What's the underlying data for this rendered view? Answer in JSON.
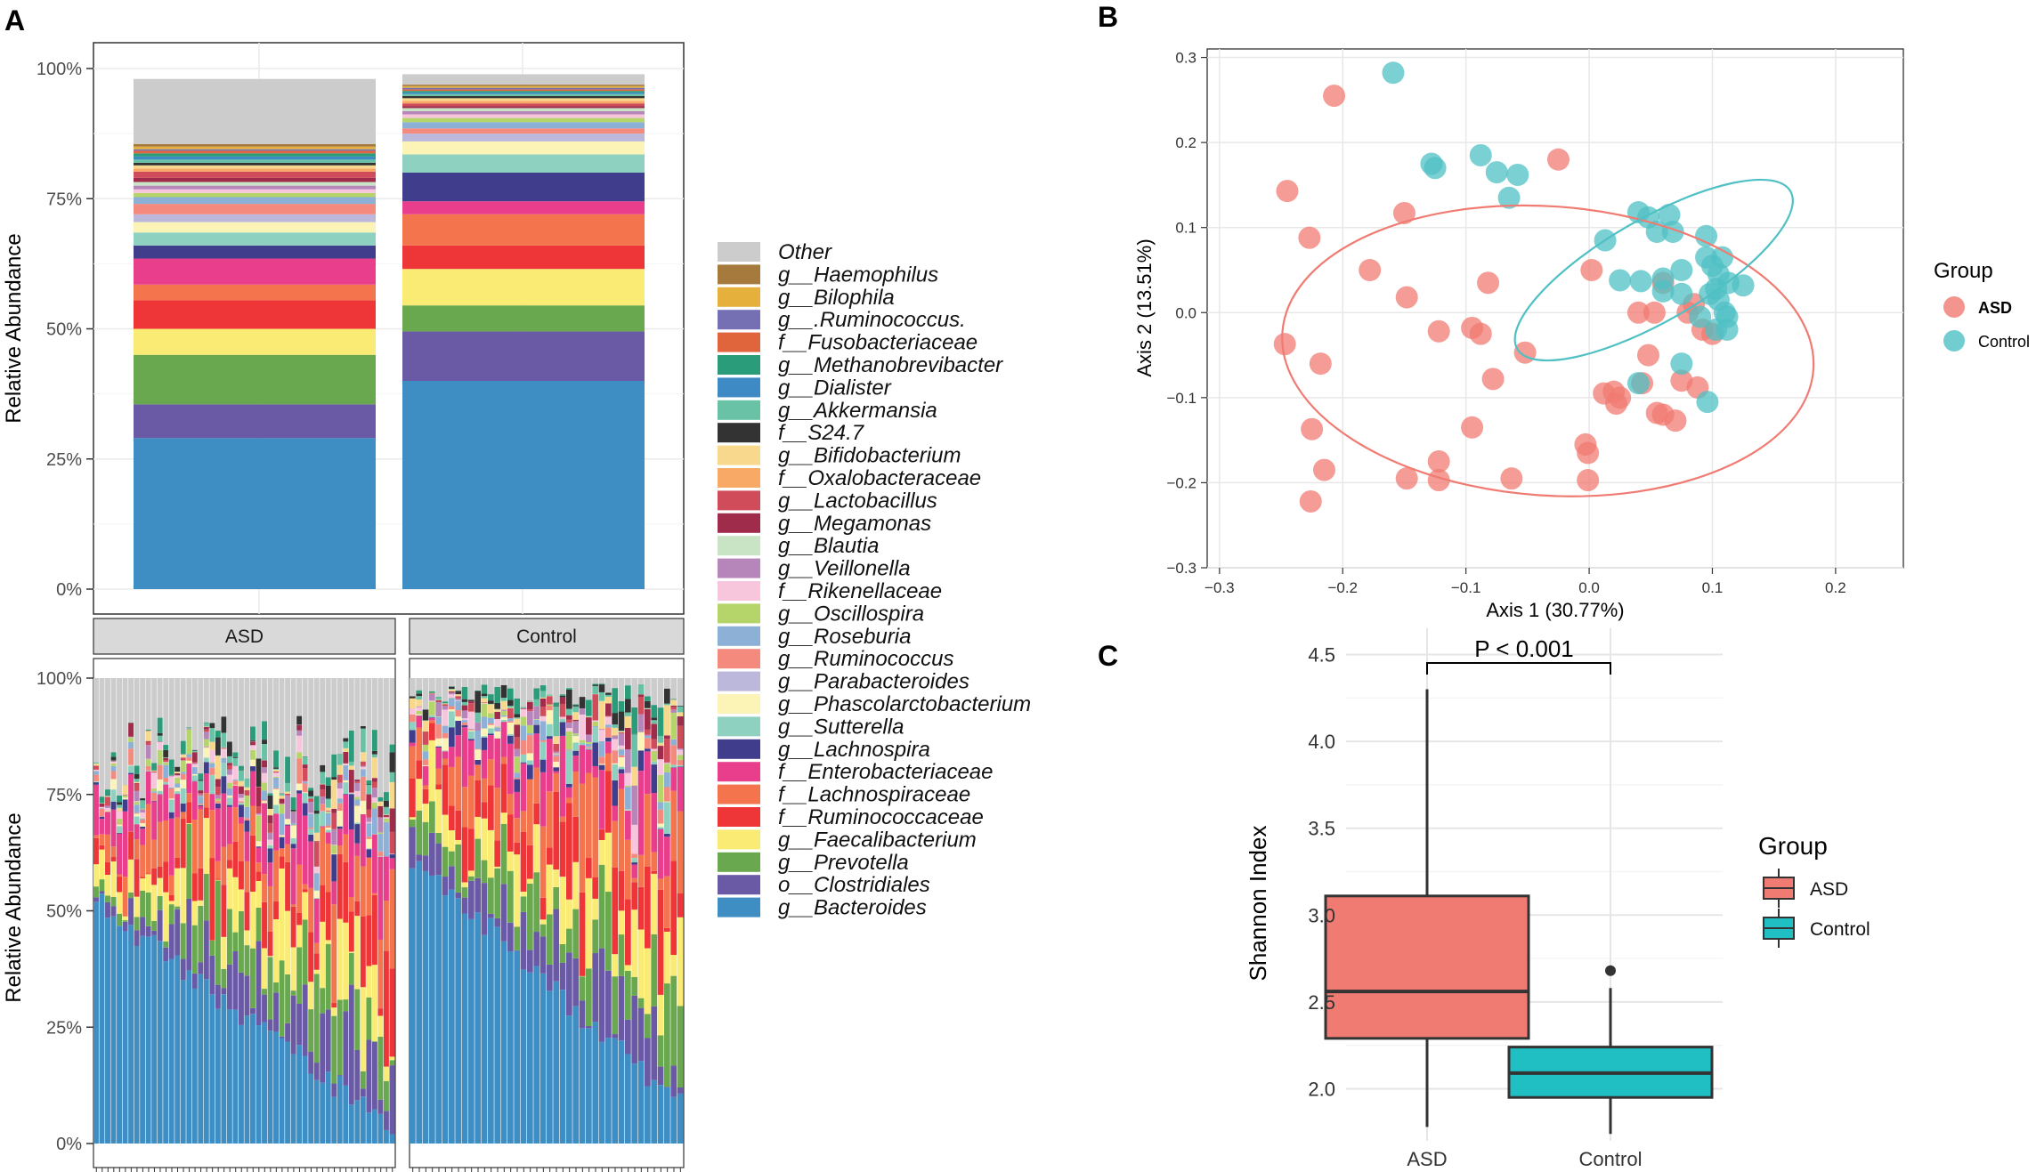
{
  "panels": {
    "a": "A",
    "b": "B",
    "c": "C"
  },
  "chart_data": [
    {
      "type": "bar",
      "stacked": true,
      "title": "",
      "ylabel": "Relative Abundance",
      "yticks": [
        "0%",
        "25%",
        "50%",
        "75%",
        "100%"
      ],
      "ylim": [
        0,
        100
      ],
      "categories": [
        "ASD",
        "Control"
      ],
      "legend_order": [
        "Other",
        "g__Haemophilus",
        "g__Bilophila",
        "g__.Ruminococcus.",
        "f__Fusobacteriaceae",
        "g__Methanobrevibacter",
        "g__Dialister",
        "g__Akkermansia",
        "f__S24.7",
        "g__Bifidobacterium",
        "f__Oxalobacteraceae",
        "g__Lactobacillus",
        "g__Megamonas",
        "g__Blautia",
        "g__Veillonella",
        "f__Rikenellaceae",
        "g__Oscillospira",
        "g__Roseburia",
        "g__Ruminococcus",
        "g__Parabacteroides",
        "g__Phascolarctobacterium",
        "g__Sutterella",
        "g__Lachnospira",
        "f__Enterobacteriaceae",
        "f__Lachnospiraceae",
        "f__Ruminococcaceae",
        "g__Faecalibacterium",
        "g__Prevotella",
        "o__Clostridiales",
        "g__Bacteroides"
      ],
      "colors": {
        "Other": "#cccccc",
        "g__Haemophilus": "#a6793c",
        "g__Bilophila": "#e6b03c",
        "g__.Ruminococcus.": "#7570b3",
        "f__Fusobacteriaceae": "#e0643c",
        "g__Methanobrevibacter": "#2a9c7a",
        "g__Dialister": "#3d8ac4",
        "g__Akkermansia": "#69c2a5",
        "f__S24.7": "#333333",
        "g__Bifidobacterium": "#f7d88c",
        "f__Oxalobacteraceae": "#f8a965",
        "g__Lactobacillus": "#d04c5a",
        "g__Megamonas": "#a02c4c",
        "g__Blautia": "#c9e4c5",
        "g__Veillonella": "#b686bb",
        "f__Rikenellaceae": "#f7c6dc",
        "g__Oscillospira": "#b5d56a",
        "g__Roseburia": "#8cb0d6",
        "g__Ruminococcus": "#f48a7e",
        "g__Parabacteroides": "#bcb8dc",
        "g__Phascolarctobacterium": "#fcf4b6",
        "g__Sutterella": "#8ed1c1",
        "g__Lachnospira": "#3f3d8c",
        "f__Enterobacteriaceae": "#e83e8c",
        "f__Lachnospiraceae": "#f4744e",
        "f__Ruminococcaceae": "#ee3537",
        "g__Faecalibacterium": "#f9eb74",
        "g__Prevotella": "#6aa84f",
        "o__Clostridiales": "#6a5aa6",
        "g__Bacteroides": "#3e8ec4"
      },
      "series": [
        {
          "name": "g__Bacteroides",
          "values": [
            29,
            40
          ]
        },
        {
          "name": "o__Clostridiales",
          "values": [
            6.5,
            9.5
          ]
        },
        {
          "name": "g__Prevotella",
          "values": [
            9.5,
            5
          ]
        },
        {
          "name": "g__Faecalibacterium",
          "values": [
            5,
            7
          ]
        },
        {
          "name": "f__Ruminococcaceae",
          "values": [
            5.5,
            4.5
          ]
        },
        {
          "name": "f__Lachnospiraceae",
          "values": [
            3,
            6
          ]
        },
        {
          "name": "f__Enterobacteriaceae",
          "values": [
            5,
            2.5
          ]
        },
        {
          "name": "g__Lachnospira",
          "values": [
            2.5,
            5.5
          ]
        },
        {
          "name": "g__Sutterella",
          "values": [
            2.5,
            3.5
          ]
        },
        {
          "name": "g__Phascolarctobacterium",
          "values": [
            2,
            2.5
          ]
        },
        {
          "name": "g__Parabacteroides",
          "values": [
            1.5,
            1.5
          ]
        },
        {
          "name": "g__Ruminococcus",
          "values": [
            2,
            1
          ]
        },
        {
          "name": "g__Roseburia",
          "values": [
            1.3,
            1.2
          ]
        },
        {
          "name": "g__Oscillospira",
          "values": [
            0.8,
            0.8
          ]
        },
        {
          "name": "f__Rikenellaceae",
          "values": [
            0.7,
            0.7
          ]
        },
        {
          "name": "g__Veillonella",
          "values": [
            0.7,
            0.6
          ]
        },
        {
          "name": "g__Blautia",
          "values": [
            0.7,
            0.6
          ]
        },
        {
          "name": "g__Megamonas",
          "values": [
            0.8,
            0.4
          ]
        },
        {
          "name": "g__Lactobacillus",
          "values": [
            1.2,
            0.5
          ]
        },
        {
          "name": "f__Oxalobacteraceae",
          "values": [
            0.6,
            0.5
          ]
        },
        {
          "name": "g__Bifidobacterium",
          "values": [
            0.6,
            0.5
          ]
        },
        {
          "name": "f__S24.7",
          "values": [
            0.5,
            0.4
          ]
        },
        {
          "name": "g__Akkermansia",
          "values": [
            0.6,
            0.4
          ]
        },
        {
          "name": "g__Dialister",
          "values": [
            0.6,
            0.3
          ]
        },
        {
          "name": "g__Methanobrevibacter",
          "values": [
            0.6,
            0.3
          ]
        },
        {
          "name": "f__Fusobacteriaceae",
          "values": [
            0.5,
            0.3
          ]
        },
        {
          "name": "g__.Ruminococcus.",
          "values": [
            0.3,
            0.3
          ]
        },
        {
          "name": "g__Bilophila",
          "values": [
            0.5,
            0.3
          ]
        },
        {
          "name": "g__Haemophilus",
          "values": [
            0.5,
            0.3
          ]
        },
        {
          "name": "Other",
          "values": [
            12.5,
            2
          ]
        }
      ]
    },
    {
      "type": "bar",
      "stacked": true,
      "ylabel": "Relative Abundance",
      "yticks": [
        "0%",
        "25%",
        "50%",
        "75%",
        "100%"
      ],
      "ylim": [
        0,
        100
      ],
      "facets": [
        "ASD",
        "Control"
      ],
      "samples_per_facet": [
        52,
        42
      ],
      "groups": [
        {
          "facet": "ASD",
          "count": 52,
          "bacteroides_range": [
            52,
            3
          ],
          "top_fill": "Other"
        },
        {
          "facet": "Control",
          "count": 42,
          "bacteroides_range": [
            62,
            8
          ],
          "top_fill": "Other"
        }
      ]
    },
    {
      "type": "scatter",
      "xlabel": "Axis 1 (30.77%)",
      "ylabel": "Axis 2 (13.51%)",
      "xlim": [
        -0.31,
        0.255
      ],
      "ylim": [
        -0.3,
        0.31
      ],
      "xticks": [
        -0.3,
        -0.2,
        -0.1,
        0.0,
        0.1,
        0.2
      ],
      "yticks": [
        -0.3,
        -0.2,
        -0.1,
        0.0,
        0.1,
        0.2,
        0.3
      ],
      "xtick_labels": [
        "−0.3",
        "−0.2",
        "−0.1",
        "0.0",
        "0.1",
        "0.2"
      ],
      "ytick_labels": [
        "−0.3",
        "−0.2",
        "−0.1",
        "0.0",
        "0.1",
        "0.2",
        "0.3"
      ],
      "legend_title": "Group",
      "series": [
        {
          "name": "ASD",
          "color": "#f07b72",
          "points": [
            [
              -0.207,
              0.255
            ],
            [
              -0.245,
              0.143
            ],
            [
              -0.227,
              0.088
            ],
            [
              -0.15,
              0.117
            ],
            [
              -0.178,
              0.05
            ],
            [
              -0.148,
              0.018
            ],
            [
              -0.082,
              0.035
            ],
            [
              -0.247,
              -0.037
            ],
            [
              -0.218,
              -0.06
            ],
            [
              -0.095,
              -0.018
            ],
            [
              -0.122,
              -0.022
            ],
            [
              -0.088,
              -0.025
            ],
            [
              -0.052,
              -0.047
            ],
            [
              -0.078,
              -0.078
            ],
            [
              -0.225,
              -0.137
            ],
            [
              -0.095,
              -0.135
            ],
            [
              -0.215,
              -0.185
            ],
            [
              -0.148,
              -0.195
            ],
            [
              -0.122,
              -0.175
            ],
            [
              -0.122,
              -0.197
            ],
            [
              -0.063,
              -0.195
            ],
            [
              -0.226,
              -0.222
            ],
            [
              -0.003,
              -0.155
            ],
            [
              -0.001,
              -0.165
            ],
            [
              -0.001,
              -0.197
            ],
            [
              -0.025,
              0.18
            ],
            [
              0.002,
              0.05
            ],
            [
              0.04,
              0.0
            ],
            [
              0.053,
              0.0
            ],
            [
              0.06,
              0.035
            ],
            [
              0.08,
              0.0
            ],
            [
              0.092,
              -0.02
            ],
            [
              0.085,
              0.01
            ],
            [
              0.048,
              -0.05
            ],
            [
              0.012,
              -0.095
            ],
            [
              0.02,
              -0.093
            ],
            [
              0.025,
              -0.1
            ],
            [
              0.022,
              -0.107
            ],
            [
              0.043,
              -0.083
            ],
            [
              0.075,
              -0.08
            ],
            [
              0.088,
              -0.088
            ],
            [
              0.055,
              -0.118
            ],
            [
              0.06,
              -0.12
            ],
            [
              0.07,
              -0.127
            ],
            [
              0.1,
              -0.025
            ]
          ]
        },
        {
          "name": "Control",
          "color": "#4fc0c4",
          "points": [
            [
              -0.159,
              0.282
            ],
            [
              -0.128,
              0.175
            ],
            [
              -0.125,
              0.17
            ],
            [
              -0.088,
              0.185
            ],
            [
              -0.075,
              0.165
            ],
            [
              -0.058,
              0.162
            ],
            [
              -0.065,
              0.135
            ],
            [
              0.013,
              0.085
            ],
            [
              0.025,
              0.038
            ],
            [
              0.042,
              0.037
            ],
            [
              0.04,
              0.118
            ],
            [
              0.048,
              0.112
            ],
            [
              0.055,
              0.095
            ],
            [
              0.06,
              0.04
            ],
            [
              0.06,
              0.025
            ],
            [
              0.065,
              0.115
            ],
            [
              0.075,
              0.022
            ],
            [
              0.075,
              0.05
            ],
            [
              0.095,
              0.09
            ],
            [
              0.095,
              0.065
            ],
            [
              0.1,
              0.055
            ],
            [
              0.105,
              0.045
            ],
            [
              0.103,
              0.028
            ],
            [
              0.105,
              0.015
            ],
            [
              0.098,
              0.022
            ],
            [
              0.108,
              0.065
            ],
            [
              0.113,
              0.035
            ],
            [
              0.125,
              0.032
            ],
            [
              0.11,
              0.0
            ],
            [
              0.112,
              -0.005
            ],
            [
              0.103,
              -0.02
            ],
            [
              0.112,
              -0.02
            ],
            [
              0.09,
              -0.005
            ],
            [
              0.075,
              -0.06
            ],
            [
              0.04,
              -0.083
            ],
            [
              0.096,
              -0.105
            ],
            [
              0.068,
              0.095
            ]
          ]
        }
      ],
      "ellipses": [
        {
          "group": "ASD",
          "cx": -0.0335,
          "cy": -0.045,
          "rx": 0.216,
          "ry": 0.17,
          "angle_deg": 4
        },
        {
          "group": "Control",
          "cx": 0.0525,
          "cy": 0.05,
          "rx": 0.128,
          "ry": 0.06,
          "angle_deg": -30
        }
      ]
    },
    {
      "type": "box",
      "xlabel": "",
      "ylabel": "Shannon Index",
      "categories": [
        "ASD",
        "Control"
      ],
      "ylim": [
        1.7,
        4.6
      ],
      "yticks": [
        2.0,
        2.5,
        3.0,
        3.5,
        4.0,
        4.5
      ],
      "ytick_labels": [
        "2.0",
        "2.5",
        "3.0",
        "3.5",
        "4.0",
        "4.5"
      ],
      "legend_title": "Group",
      "annotation": "P < 0.001",
      "boxes": [
        {
          "name": "ASD",
          "color": "#f07b72",
          "min": 1.78,
          "q1": 2.29,
          "median": 2.56,
          "q3": 3.11,
          "max": 4.3,
          "outliers": []
        },
        {
          "name": "Control",
          "color": "#1fbfc4",
          "min": 1.74,
          "q1": 1.95,
          "median": 2.09,
          "q3": 2.24,
          "max": 2.58,
          "outliers": [
            2.68
          ]
        }
      ]
    }
  ]
}
